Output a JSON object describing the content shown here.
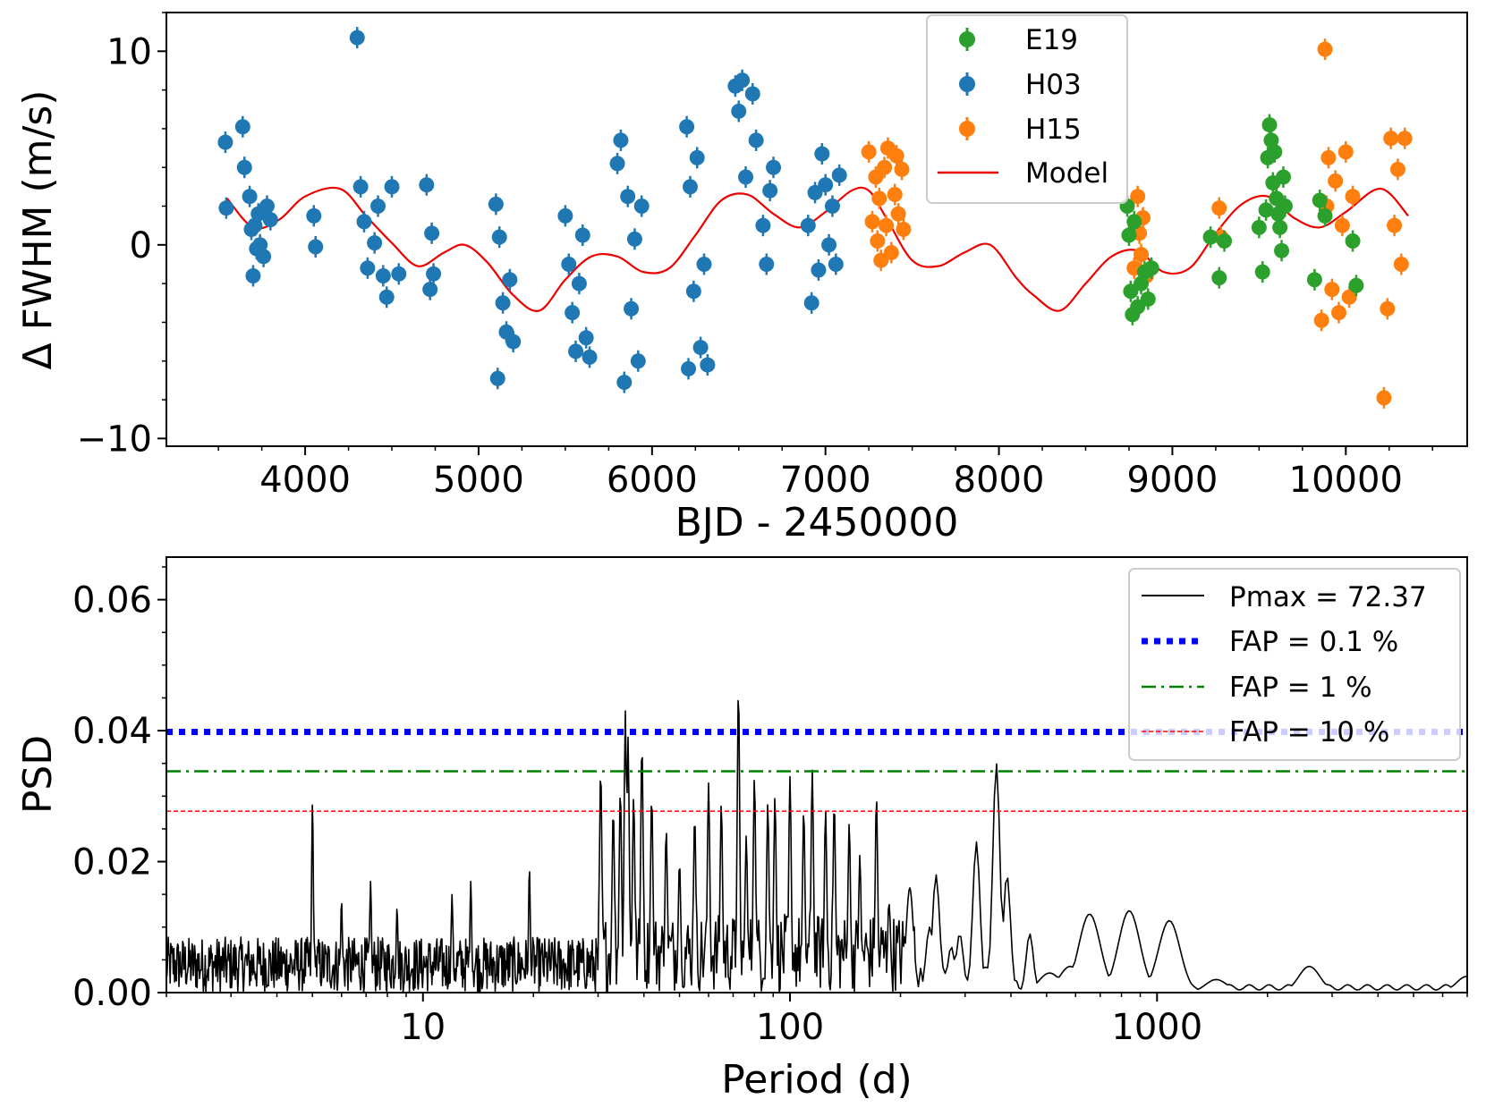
{
  "chart_data": [
    {
      "type": "scatter",
      "xlabel": "BJD - 2450000",
      "ylabel": "Δ FWHM (m/s)",
      "xlim": [
        3200,
        10700
      ],
      "ylim": [
        -10.4,
        12
      ],
      "xticks": [
        4000,
        5000,
        6000,
        7000,
        8000,
        9000,
        10000
      ],
      "xtick_labels": [
        "4000",
        "5000",
        "6000",
        "7000",
        "8000",
        "9000",
        "10000"
      ],
      "yticks": [
        -10,
        0,
        10
      ],
      "ytick_labels": [
        "−10",
        "0",
        "10"
      ],
      "legend_position": "top-center",
      "series": [
        {
          "name": "E19",
          "color": "#2ca02c",
          "marker": "circle-errorbar",
          "x": [
            8740,
            8750,
            8760,
            8770,
            8780,
            8800,
            8820,
            8840,
            8860,
            8880,
            9220,
            9270,
            9300,
            9500,
            9520,
            9540,
            9550,
            9560,
            9570,
            9580,
            9590,
            9600,
            9610,
            9620,
            9630,
            9640,
            9650,
            9820,
            9850,
            9880,
            10040,
            10060
          ],
          "y": [
            2.0,
            0.5,
            -2.4,
            -3.6,
            1.2,
            -3.2,
            -2.0,
            -1.4,
            -2.8,
            -1.2,
            0.4,
            -1.7,
            0.2,
            0.9,
            -1.4,
            1.8,
            4.5,
            6.2,
            5.4,
            3.2,
            4.8,
            2.4,
            1.6,
            0.9,
            -0.3,
            3.5,
            2.0,
            -1.8,
            2.3,
            1.5,
            0.2,
            -2.1
          ]
        },
        {
          "name": "H03",
          "color": "#1f77b4",
          "marker": "circle-errorbar",
          "x": [
            3540,
            3545,
            3640,
            3650,
            3680,
            3690,
            3700,
            3710,
            3720,
            3730,
            3740,
            3760,
            3780,
            3800,
            4050,
            4060,
            4300,
            4320,
            4340,
            4360,
            4400,
            4420,
            4450,
            4470,
            4500,
            4540,
            4700,
            4720,
            4730,
            4740,
            5100,
            5110,
            5120,
            5140,
            5160,
            5180,
            5200,
            5500,
            5520,
            5540,
            5560,
            5580,
            5600,
            5620,
            5640,
            5800,
            5820,
            5840,
            5860,
            5880,
            5900,
            5920,
            5940,
            6200,
            6210,
            6220,
            6240,
            6260,
            6280,
            6300,
            6320,
            6480,
            6500,
            6520,
            6540,
            6580,
            6600,
            6640,
            6660,
            6680,
            6700,
            6900,
            6920,
            6940,
            6960,
            6980,
            7000,
            7020,
            7040,
            7060,
            7080
          ],
          "y": [
            5.3,
            1.9,
            6.1,
            4.0,
            2.5,
            0.8,
            -1.6,
            1.0,
            -0.2,
            1.6,
            0.0,
            -0.6,
            2.0,
            1.3,
            1.5,
            -0.1,
            10.7,
            3.0,
            1.2,
            -1.2,
            0.1,
            2.0,
            -1.6,
            -2.7,
            3.0,
            -1.5,
            3.1,
            -2.3,
            0.6,
            -1.5,
            2.1,
            -6.9,
            0.4,
            -3.0,
            -4.5,
            -1.8,
            -5.0,
            1.5,
            -1.0,
            -3.5,
            -5.5,
            -2.0,
            0.5,
            -4.8,
            -5.8,
            4.2,
            5.4,
            -7.1,
            2.5,
            -3.3,
            0.3,
            -6.0,
            2.0,
            6.1,
            -6.4,
            3.0,
            -2.4,
            4.5,
            -5.3,
            -1.0,
            -6.2,
            8.2,
            6.9,
            8.5,
            3.5,
            7.8,
            5.4,
            1.0,
            -1.0,
            2.8,
            4.0,
            1.0,
            -3.0,
            2.7,
            -1.3,
            4.7,
            3.1,
            0.0,
            2.0,
            -1.0,
            3.6
          ]
        },
        {
          "name": "H15",
          "color": "#ff7f0e",
          "marker": "circle-errorbar",
          "x": [
            7250,
            7270,
            7290,
            7300,
            7310,
            7320,
            7340,
            7350,
            7360,
            7380,
            7400,
            7410,
            7420,
            7440,
            7450,
            8780,
            8800,
            8810,
            8820,
            8830,
            8850,
            9270,
            9280,
            9860,
            9880,
            9890,
            9900,
            9920,
            9940,
            9960,
            9980,
            10000,
            10020,
            10040,
            10220,
            10240,
            10260,
            10280,
            10300,
            10320,
            10340
          ],
          "y": [
            4.8,
            1.2,
            3.5,
            0.2,
            2.4,
            -0.8,
            4.0,
            1.0,
            5.0,
            -0.4,
            2.6,
            4.6,
            1.6,
            3.9,
            0.8,
            -1.2,
            2.5,
            0.6,
            -0.5,
            1.4,
            -1.6,
            1.9,
            0.4,
            -3.9,
            10.1,
            2.0,
            4.5,
            -2.3,
            3.3,
            -3.5,
            1.0,
            4.8,
            -2.7,
            2.5,
            -7.9,
            -3.3,
            5.5,
            1.0,
            3.9,
            -1.0,
            5.5
          ]
        },
        {
          "name": "Model",
          "color": "#ee0000",
          "type": "line",
          "x": [
            3550,
            3700,
            3850,
            4000,
            4200,
            4350,
            4500,
            4650,
            4800,
            4920,
            5050,
            5200,
            5350,
            5500,
            5650,
            5800,
            5950,
            6100,
            6250,
            6400,
            6550,
            6700,
            6850,
            7000,
            7150,
            7250,
            7350,
            7500,
            7650,
            7800,
            7950,
            8100,
            8200,
            8350,
            8500,
            8650,
            8800,
            8950,
            9100,
            9250,
            9400,
            9550,
            9700,
            9850,
            10000,
            10200,
            10360
          ],
          "y": [
            2.4,
            0.9,
            1.3,
            2.5,
            2.9,
            1.5,
            0.1,
            -1.1,
            -0.4,
            0.0,
            -0.9,
            -2.6,
            -3.4,
            -1.8,
            -0.6,
            -0.6,
            -1.4,
            -1.2,
            0.5,
            2.3,
            2.6,
            1.6,
            0.9,
            1.7,
            2.8,
            2.8,
            1.4,
            -0.8,
            -1.1,
            -0.4,
            0.0,
            -1.7,
            -2.6,
            -3.4,
            -2.0,
            -0.6,
            -0.3,
            -1.4,
            -1.2,
            0.6,
            2.1,
            2.5,
            1.4,
            0.9,
            1.7,
            2.9,
            1.5
          ]
        }
      ]
    },
    {
      "type": "line",
      "xlabel": "Period (d)",
      "ylabel": "PSD",
      "xscale": "log",
      "xlim": [
        2,
        7000
      ],
      "ylim": [
        0,
        0.0665
      ],
      "xticks": [
        10,
        100,
        1000
      ],
      "xtick_labels": [
        "10",
        "100",
        "1000"
      ],
      "yticks": [
        0,
        0.02,
        0.04,
        0.06
      ],
      "ytick_labels": [
        "0.00",
        "0.02",
        "0.04",
        "0.06"
      ],
      "legend_position": "top-right",
      "series": [
        {
          "name": "Pmax = 72.37",
          "color": "#000000",
          "style": "solid",
          "peaks": [
            [
              5.0,
              0.029
            ],
            [
              5.1,
              0.004
            ],
            [
              6.0,
              0.014
            ],
            [
              7.2,
              0.017
            ],
            [
              8.5,
              0.013
            ],
            [
              12.0,
              0.015
            ],
            [
              13.5,
              0.017
            ],
            [
              19.5,
              0.019
            ],
            [
              30.5,
              0.034
            ],
            [
              33.0,
              0.028
            ],
            [
              34.5,
              0.031
            ],
            [
              35.6,
              0.043
            ],
            [
              36.2,
              0.039
            ],
            [
              37.5,
              0.03
            ],
            [
              39.5,
              0.038
            ],
            [
              42.0,
              0.03
            ],
            [
              46.0,
              0.025
            ],
            [
              50.0,
              0.02
            ],
            [
              55.0,
              0.027
            ],
            [
              60.0,
              0.032
            ],
            [
              65.0,
              0.029
            ],
            [
              72.37,
              0.0465
            ],
            [
              76.0,
              0.024
            ],
            [
              80.0,
              0.033
            ],
            [
              87.0,
              0.029
            ],
            [
              91.0,
              0.03
            ],
            [
              100.0,
              0.033
            ],
            [
              109.0,
              0.028
            ],
            [
              115.0,
              0.034
            ],
            [
              125.0,
              0.028
            ],
            [
              132.0,
              0.029
            ],
            [
              145.0,
              0.026
            ],
            [
              155.0,
              0.021
            ],
            [
              172.0,
              0.03
            ],
            [
              186.0,
              0.014
            ],
            [
              212.0,
              0.016
            ],
            [
              240.0,
              0.01
            ],
            [
              250.0,
              0.018
            ],
            [
              275.0,
              0.007
            ],
            [
              290.0,
              0.009
            ],
            [
              322.0,
              0.023
            ],
            [
              365.0,
              0.035
            ],
            [
              390.0,
              0.018
            ],
            [
              450.0,
              0.009
            ],
            [
              510.0,
              0.003
            ],
            [
              580.0,
              0.004
            ],
            [
              655.0,
              0.012
            ],
            [
              840.0,
              0.0125
            ],
            [
              1080.0,
              0.011
            ],
            [
              1450.0,
              0.002
            ],
            [
              2600.0,
              0.004
            ],
            [
              7000.0,
              0.0025
            ]
          ]
        },
        {
          "name": "FAP = 0.1 %",
          "color": "#0000ff",
          "style": "dotted",
          "value": 0.0398
        },
        {
          "name": "FAP = 1 %",
          "color": "#008000",
          "style": "dashdot",
          "value": 0.0338
        },
        {
          "name": "FAP = 10 %",
          "color": "#ff0000",
          "style": "dashed",
          "value": 0.0277
        }
      ]
    }
  ]
}
